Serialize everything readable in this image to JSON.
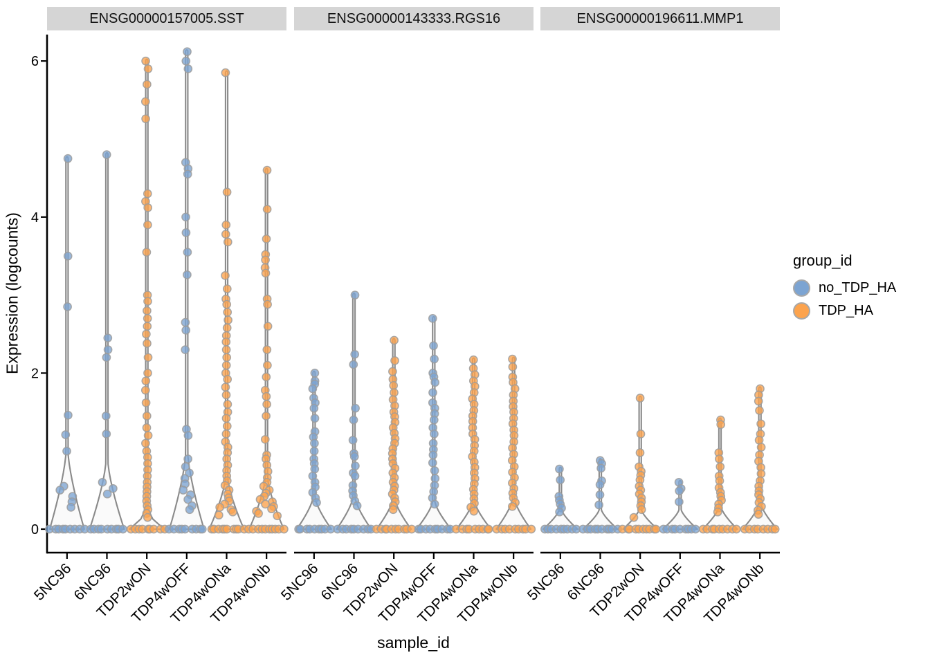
{
  "colors": {
    "no_TDP_HA": "#7CA4D2",
    "TDP_HA": "#FCA34D",
    "point_stroke": "#9C9C9C",
    "violin_fill": "#F8F8F8",
    "violin_stroke": "#8A8A8A",
    "axis": "#000000",
    "strip_bg": "#D5D5D5"
  },
  "chart_data": {
    "type": "violin-jitter",
    "title": "",
    "xlabel": "sample_id",
    "ylabel": "Expression (logcounts)",
    "ylim": [
      0,
      6.4
    ],
    "yticks": [
      0,
      2,
      4,
      6
    ],
    "grid": false,
    "legend_position": "right",
    "categories": [
      "5NC96",
      "6NC96",
      "TDP2wON",
      "TDP4wOFF",
      "TDP4wONa",
      "TDP4wONb"
    ],
    "legend": {
      "title": "group_id",
      "entries": [
        {
          "label": "no_TDP_HA",
          "color": "#7CA4D2"
        },
        {
          "label": "TDP_HA",
          "color": "#FCA34D"
        }
      ]
    },
    "facets": [
      {
        "label": "ENSG00000157005.SST",
        "violins": [
          {
            "sample": "5NC96",
            "group": "no_TDP_HA",
            "flare_top": 0.97,
            "n_zero": 9,
            "points": [
              4.75,
              3.5,
              2.85,
              1.46,
              1.21,
              1.0,
              0.55,
              0.5,
              0.42,
              0.35,
              0.28
            ]
          },
          {
            "sample": "6NC96",
            "group": "no_TDP_HA",
            "flare_top": 0.85,
            "n_zero": 9,
            "points": [
              4.8,
              2.45,
              2.3,
              2.2,
              1.45,
              1.22,
              0.6,
              0.52,
              0.45
            ]
          },
          {
            "sample": "TDP2wON",
            "group": "TDP_HA",
            "flare_top": 0.22,
            "n_zero": 9,
            "points": [
              6.0,
              5.9,
              5.7,
              5.48,
              5.26,
              4.3,
              4.2,
              4.12,
              3.9,
              3.55,
              3.0,
              2.92,
              2.8,
              2.7,
              2.6,
              2.5,
              2.38,
              2.2,
              2.0,
              1.9,
              1.78,
              1.62,
              1.45,
              1.3,
              1.2,
              1.1,
              1.0,
              0.92,
              0.84,
              0.76,
              0.68,
              0.6,
              0.54,
              0.48,
              0.42,
              0.36,
              0.3,
              0.25,
              0.2,
              0.15
            ]
          },
          {
            "sample": "TDP4wOFF",
            "group": "no_TDP_HA",
            "flare_top": 0.95,
            "n_zero": 9,
            "points": [
              6.12,
              6.0,
              5.9,
              4.7,
              4.62,
              4.55,
              4.0,
              3.8,
              3.55,
              3.26,
              2.65,
              2.55,
              2.3,
              1.28,
              1.2,
              0.9,
              0.8,
              0.72,
              0.65,
              0.58,
              0.5,
              0.44,
              0.38,
              0.3,
              0.25
            ]
          },
          {
            "sample": "TDP4wONa",
            "group": "TDP_HA",
            "flare_top": 0.65,
            "n_zero": 10,
            "points": [
              5.85,
              4.32,
              3.9,
              3.78,
              3.68,
              3.25,
              3.08,
              2.95,
              2.88,
              2.78,
              2.68,
              2.58,
              2.48,
              2.4,
              2.3,
              2.2,
              2.1,
              2.0,
              1.92,
              1.82,
              1.72,
              1.6,
              1.5,
              1.42,
              1.32,
              1.22,
              1.12,
              1.05,
              0.98,
              0.9,
              0.82,
              0.75,
              0.68,
              0.62,
              0.56,
              0.5,
              0.45,
              0.4,
              0.36,
              0.32,
              0.28,
              0.25,
              0.22,
              0.18
            ]
          },
          {
            "sample": "TDP4wONb",
            "group": "TDP_HA",
            "flare_top": 0.65,
            "n_zero": 10,
            "points": [
              4.6,
              4.1,
              3.72,
              3.52,
              3.45,
              3.35,
              3.28,
              2.95,
              2.88,
              2.6,
              2.3,
              2.1,
              1.95,
              1.78,
              1.7,
              1.6,
              1.45,
              1.15,
              0.95,
              0.9,
              0.82,
              0.74,
              0.66,
              0.6,
              0.55,
              0.5,
              0.46,
              0.42,
              0.38,
              0.35,
              0.32,
              0.29,
              0.26,
              0.23,
              0.2,
              0.17
            ]
          }
        ]
      },
      {
        "label": "ENSG00000143333.RGS16",
        "violins": [
          {
            "sample": "5NC96",
            "group": "no_TDP_HA",
            "flare_top": 0.4,
            "n_zero": 9,
            "points": [
              2.0,
              1.9,
              1.86,
              1.8,
              1.68,
              1.62,
              1.55,
              1.42,
              1.25,
              1.18,
              1.1,
              1.0,
              0.9,
              0.84,
              0.77,
              0.68,
              0.6,
              0.54,
              0.47,
              0.4,
              0.34
            ]
          },
          {
            "sample": "6NC96",
            "group": "no_TDP_HA",
            "flare_top": 0.4,
            "n_zero": 9,
            "points": [
              3.0,
              2.24,
              2.11,
              1.55,
              1.4,
              1.14,
              0.97,
              0.93,
              0.81,
              0.72,
              0.68,
              0.56,
              0.49,
              0.43,
              0.36,
              0.3
            ]
          },
          {
            "sample": "TDP2wON",
            "group": "TDP_HA",
            "flare_top": 0.38,
            "n_zero": 10,
            "points": [
              2.42,
              2.16,
              2.02,
              1.92,
              1.84,
              1.75,
              1.66,
              1.58,
              1.5,
              1.44,
              1.37,
              1.3,
              1.23,
              1.16,
              1.1,
              1.03,
              0.97,
              0.9,
              0.84,
              0.78,
              0.72,
              0.66,
              0.6,
              0.55,
              0.5,
              0.45,
              0.4,
              0.35,
              0.3,
              0.25
            ]
          },
          {
            "sample": "TDP4wOFF",
            "group": "no_TDP_HA",
            "flare_top": 0.35,
            "n_zero": 9,
            "points": [
              2.7,
              2.35,
              2.18,
              2.0,
              1.95,
              1.88,
              1.75,
              1.62,
              1.55,
              1.48,
              1.4,
              1.3,
              1.22,
              1.1,
              1.02,
              0.95,
              0.85,
              0.75,
              0.65,
              0.56,
              0.48,
              0.4,
              0.32
            ]
          },
          {
            "sample": "TDP4wONa",
            "group": "TDP_HA",
            "flare_top": 0.35,
            "n_zero": 9,
            "points": [
              2.17,
              2.06,
              1.98,
              1.9,
              1.83,
              1.75,
              1.67,
              1.6,
              1.52,
              1.45,
              1.38,
              1.3,
              1.22,
              1.15,
              1.07,
              1.0,
              0.93,
              0.86,
              0.79,
              0.72,
              0.65,
              0.58,
              0.51,
              0.45,
              0.39,
              0.33,
              0.28,
              0.23
            ]
          },
          {
            "sample": "TDP4wONb",
            "group": "TDP_HA",
            "flare_top": 0.38,
            "n_zero": 9,
            "points": [
              2.18,
              2.08,
              1.95,
              1.88,
              1.8,
              1.72,
              1.64,
              1.57,
              1.5,
              1.42,
              1.35,
              1.27,
              1.2,
              1.12,
              1.04,
              0.96,
              0.88,
              0.8,
              0.73,
              0.66,
              0.59,
              0.52,
              0.46,
              0.4,
              0.34,
              0.29
            ]
          }
        ]
      },
      {
        "label": "ENSG00000196611.MMP1",
        "violins": [
          {
            "sample": "5NC96",
            "group": "no_TDP_HA",
            "flare_top": 0.25,
            "n_zero": 9,
            "points": [
              0.77,
              0.63,
              0.42,
              0.37,
              0.32,
              0.27,
              0.22
            ]
          },
          {
            "sample": "6NC96",
            "group": "no_TDP_HA",
            "flare_top": 0.25,
            "n_zero": 10,
            "points": [
              0.88,
              0.84,
              0.78,
              0.62,
              0.57,
              0.44,
              0.31
            ]
          },
          {
            "sample": "TDP2wON",
            "group": "TDP_HA",
            "flare_top": 0.25,
            "n_zero": 10,
            "points": [
              1.68,
              1.22,
              0.98,
              0.8,
              0.74,
              0.69,
              0.63,
              0.55,
              0.5,
              0.45,
              0.4,
              0.35,
              0.3,
              0.25,
              0.15
            ]
          },
          {
            "sample": "TDP4wOFF",
            "group": "no_TDP_HA",
            "flare_top": 0.25,
            "n_zero": 9,
            "points": [
              0.6,
              0.52,
              0.49,
              0.35
            ]
          },
          {
            "sample": "TDP4wONa",
            "group": "TDP_HA",
            "flare_top": 0.28,
            "n_zero": 9,
            "points": [
              1.4,
              1.34,
              0.98,
              0.9,
              0.8,
              0.68,
              0.62,
              0.53,
              0.47,
              0.42,
              0.37,
              0.32,
              0.27,
              0.22
            ]
          },
          {
            "sample": "TDP4wONb",
            "group": "TDP_HA",
            "flare_top": 0.32,
            "n_zero": 8,
            "points": [
              1.8,
              1.72,
              1.64,
              1.52,
              1.35,
              1.22,
              1.14,
              1.05,
              0.95,
              0.87,
              0.79,
              0.71,
              0.62,
              0.55,
              0.49,
              0.44,
              0.39,
              0.34,
              0.29,
              0.24,
              0.19
            ]
          }
        ]
      }
    ]
  }
}
